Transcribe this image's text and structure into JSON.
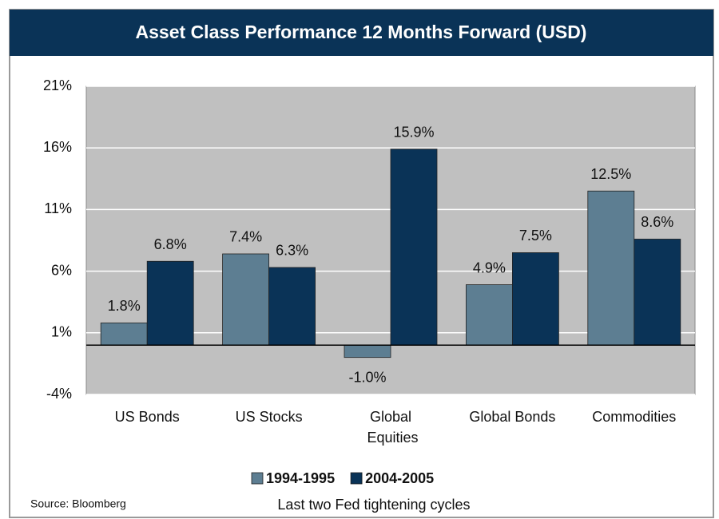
{
  "chart_data": {
    "type": "bar",
    "title": "Asset Class Performance 12 Months Forward (USD)",
    "categories": [
      "US Bonds",
      "US Stocks",
      "Global Equities",
      "Global Bonds",
      "Commodities"
    ],
    "series": [
      {
        "name": "1994-1995",
        "color": "#5d7e92",
        "values": [
          1.8,
          7.4,
          -1.0,
          4.9,
          12.5
        ],
        "value_labels": [
          "1.8%",
          "7.4%",
          "-1.0%",
          "4.9%",
          "12.5%"
        ]
      },
      {
        "name": "2004-2005",
        "color": "#0a3357",
        "values": [
          6.8,
          6.3,
          15.9,
          7.5,
          8.6
        ],
        "value_labels": [
          "6.8%",
          "6.3%",
          "15.9%",
          "7.5%",
          "8.6%"
        ]
      }
    ],
    "ylim": [
      -4,
      21
    ],
    "yticks": [
      {
        "value": -4,
        "label": "-4%"
      },
      {
        "value": 1,
        "label": "1%"
      },
      {
        "value": 6,
        "label": "6%"
      },
      {
        "value": 11,
        "label": "11%"
      },
      {
        "value": 16,
        "label": "16%"
      },
      {
        "value": 21,
        "label": "21%"
      }
    ],
    "grid": true,
    "legend": "bottom",
    "source": "Source: Bloomberg",
    "note": "Last two Fed tightening cycles"
  }
}
